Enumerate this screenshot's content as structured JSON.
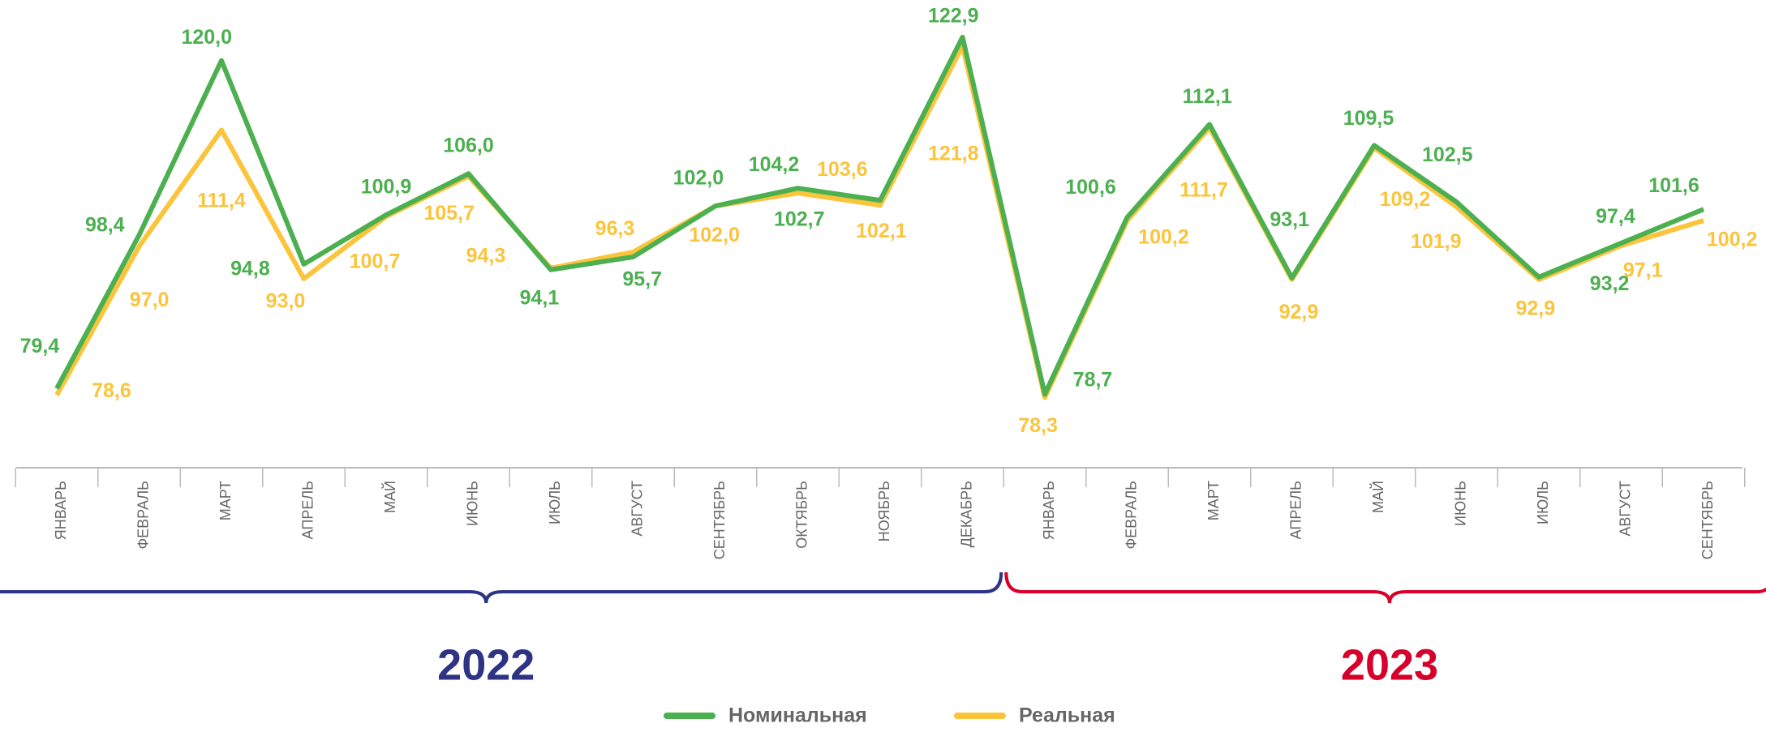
{
  "chart_data": {
    "type": "line",
    "categories": [
      "ЯНВАРЬ",
      "ФЕВРАЛЬ",
      "МАРТ",
      "АПРЕЛЬ",
      "МАЙ",
      "ИЮНЬ",
      "ИЮЛЬ",
      "АВГУСТ",
      "СЕНТЯБРЬ",
      "ОКТЯБРЬ",
      "НОЯБРЬ",
      "ДЕКАБРЬ",
      "ЯНВАРЬ",
      "ФЕВРАЛЬ",
      "МАРТ",
      "АПРЕЛЬ",
      "МАЙ",
      "ИЮНЬ",
      "ИЮЛЬ",
      "АВГУСТ",
      "СЕНТЯБРЬ"
    ],
    "series": [
      {
        "name": "Номинальная",
        "color": "#4caf50",
        "values": [
          79.4,
          98.4,
          120.0,
          94.8,
          100.9,
          106.0,
          94.1,
          95.7,
          102.0,
          104.2,
          102.7,
          122.9,
          78.7,
          100.6,
          112.1,
          93.1,
          109.5,
          102.5,
          93.2,
          97.4,
          101.6
        ],
        "value_labels": [
          "79,4",
          "98,4",
          "120,0",
          "94,8",
          "100,9",
          "106,0",
          "94,1",
          "95,7",
          "102,0",
          "104,2",
          "102,7",
          "122,9",
          "78,7",
          "100,6",
          "112,1",
          "93,1",
          "109,5",
          "102,5",
          "93,2",
          "97,4",
          "101,6"
        ]
      },
      {
        "name": "Реальная",
        "color": "#fbc43b",
        "values": [
          78.6,
          97.0,
          111.4,
          93.0,
          100.7,
          105.7,
          94.3,
          96.3,
          102.0,
          103.6,
          102.1,
          121.8,
          78.3,
          100.2,
          111.7,
          92.9,
          109.2,
          101.9,
          92.9,
          97.1,
          100.2
        ],
        "value_labels": [
          "78,6",
          "97,0",
          "111,4",
          "93,0",
          "100,7",
          "105,7",
          "94,3",
          "96,3",
          "102,0",
          "103,6",
          "102,1",
          "121,8",
          "78,3",
          "100,2",
          "111,7",
          "92,9",
          "109,2",
          "101,9",
          "92,9",
          "97,1",
          "100,2"
        ]
      }
    ],
    "groups": [
      {
        "label": "2022",
        "color": "#2e3383",
        "count": 12
      },
      {
        "label": "2023",
        "color": "#d6002a",
        "count": 9
      }
    ],
    "ylim": [
      69.6,
      127.5
    ],
    "legend": "bottom"
  }
}
